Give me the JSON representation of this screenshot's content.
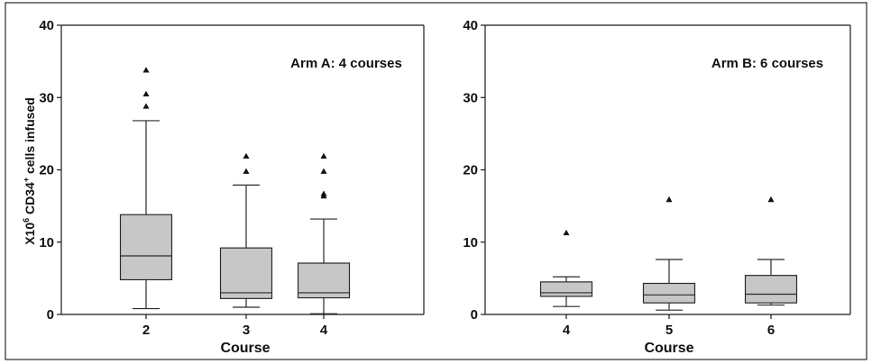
{
  "chart_data": [
    {
      "type": "box",
      "panel_label": "Arm A: 4 courses",
      "xlabel": "Course",
      "ylabel_parts": [
        "X10",
        "6",
        " CD34",
        "+",
        " cells infused"
      ],
      "ylim": [
        0,
        40
      ],
      "yticks": [
        0,
        10,
        20,
        30,
        40
      ],
      "categories": [
        "2",
        "3",
        "4"
      ],
      "boxes": [
        {
          "category": "2",
          "whisker_low": 0.8,
          "q1": 4.8,
          "median": 8.1,
          "q3": 13.8,
          "whisker_high": 26.8,
          "outliers": [
            28.8,
            30.5,
            33.8
          ]
        },
        {
          "category": "3",
          "whisker_low": 1.0,
          "q1": 2.2,
          "median": 3.0,
          "q3": 9.2,
          "whisker_high": 17.9,
          "outliers": [
            19.8,
            21.9
          ]
        },
        {
          "category": "4",
          "whisker_low": 0.1,
          "q1": 2.3,
          "median": 3.0,
          "q3": 7.1,
          "whisker_high": 13.2,
          "outliers": [
            16.4,
            16.7,
            19.8,
            21.9
          ]
        }
      ]
    },
    {
      "type": "box",
      "panel_label": "Arm B: 6 courses",
      "xlabel": "Course",
      "ylim": [
        0,
        40
      ],
      "yticks": [
        0,
        10,
        20,
        30,
        40
      ],
      "categories": [
        "4",
        "5",
        "6"
      ],
      "boxes": [
        {
          "category": "4",
          "whisker_low": 1.1,
          "q1": 2.5,
          "median": 3.0,
          "q3": 4.5,
          "whisker_high": 5.2,
          "outliers": [
            11.3
          ]
        },
        {
          "category": "5",
          "whisker_low": 0.6,
          "q1": 1.6,
          "median": 2.7,
          "q3": 4.3,
          "whisker_high": 7.6,
          "outliers": [
            15.9
          ]
        },
        {
          "category": "6",
          "whisker_low": 1.3,
          "q1": 1.6,
          "median": 2.8,
          "q3": 5.4,
          "whisker_high": 7.6,
          "outliers": [
            15.9
          ]
        }
      ]
    }
  ]
}
